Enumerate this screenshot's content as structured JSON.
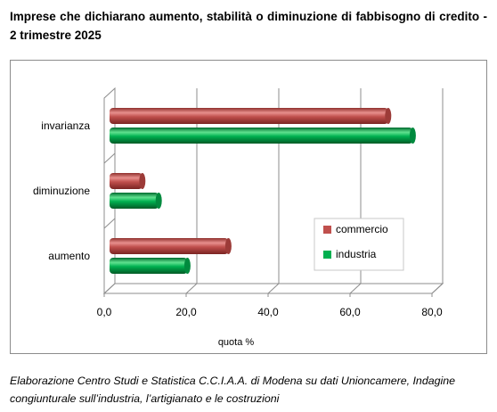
{
  "title": "Imprese che dichiarano aumento, stabilità o diminuzione di fabbisogno di credito - 2 trimestre 2025",
  "caption": "Elaborazione Centro Studi e Statistica C.C.I.A.A. di Modena su dati Unioncamere, Indagine congiunturale sull’industria, l’artigianato e le costruzioni",
  "colors": {
    "commercio": "#c0504d",
    "industria": "#00b050",
    "grid": "#8c8c8c"
  },
  "chart_data": {
    "type": "bar",
    "orientation": "horizontal",
    "categories": [
      "aumento",
      "diminuzione",
      "invarianza"
    ],
    "series": [
      {
        "name": "commercio",
        "values": [
          29.0,
          8.0,
          68.0
        ]
      },
      {
        "name": "industria",
        "values": [
          19.0,
          12.0,
          74.0
        ]
      }
    ],
    "xlim": [
      0,
      80
    ],
    "xticks": [
      "0,0",
      "20,0",
      "40,0",
      "60,0",
      "80,0"
    ],
    "xlabel": "quota %",
    "ylabel": "",
    "grid": true,
    "legend": "right",
    "style": "3d-cylinder"
  }
}
